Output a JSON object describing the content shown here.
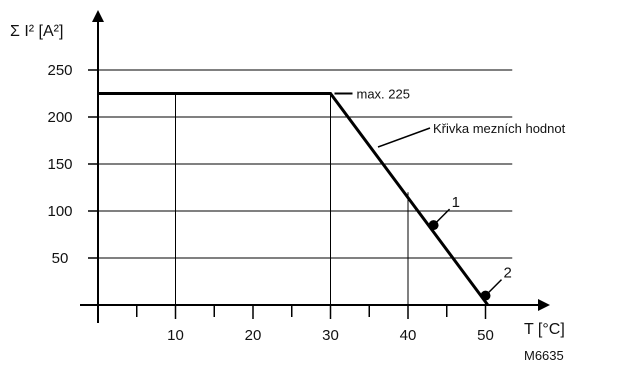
{
  "chart_data": {
    "type": "line",
    "y_title": "Σ I² [A²]",
    "x_title": "T [°C]",
    "xlim": [
      0,
      55
    ],
    "ylim": [
      0,
      275
    ],
    "x_ticks": [
      10,
      20,
      30,
      40,
      50
    ],
    "y_ticks": [
      50,
      100,
      150,
      200,
      250
    ],
    "x_minor_ticks": [
      5,
      15,
      25,
      35,
      45
    ],
    "grid": {
      "horizontal_lines_at": [
        50,
        100,
        150,
        200,
        250
      ],
      "vertical_lines_at": [
        10,
        30,
        40,
        50
      ]
    },
    "series": [
      {
        "x": [
          0,
          30,
          50.3
        ],
        "y": [
          225,
          225,
          0
        ]
      }
    ],
    "points": [
      {
        "label": "1",
        "x": 43.3,
        "y": 85
      },
      {
        "label": "2",
        "x": 50,
        "y": 10
      }
    ],
    "annotations": {
      "max_label": "max. 225",
      "curve_label": "Křivka mezních hodnot"
    },
    "figure_code": "M6635"
  }
}
